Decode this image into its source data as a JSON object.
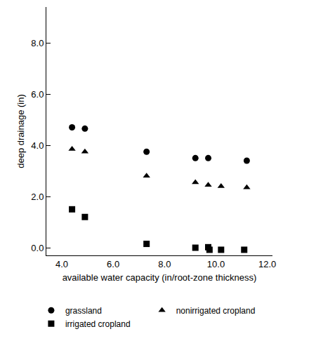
{
  "chart_data": {
    "type": "scatter",
    "x_label": "available water capacity (in/root-zone thickness)",
    "y_label": "deep drainage (in)",
    "xlim": [
      3.4,
      12.2
    ],
    "ylim": [
      -0.3,
      9.4
    ],
    "xticks": [
      {
        "value": 4,
        "label": "4.0"
      },
      {
        "value": 6,
        "label": "6.0"
      },
      {
        "value": 8,
        "label": "8.0"
      },
      {
        "value": 10,
        "label": "10.0"
      },
      {
        "value": 12,
        "label": "12.0"
      }
    ],
    "yticks": [
      {
        "value": 0,
        "label": "0.0"
      },
      {
        "value": 2,
        "label": "2.0"
      },
      {
        "value": 4,
        "label": "4.0"
      },
      {
        "value": 6,
        "label": "6.0"
      },
      {
        "value": 8,
        "label": "8.0"
      }
    ],
    "grid": false,
    "legend": "bottom",
    "series": [
      {
        "name": "grassland",
        "color": "#000000",
        "marker": "circle",
        "x": [
          4.4,
          4.9,
          7.3,
          9.2,
          9.7,
          11.2
        ],
        "values": [
          4.7,
          4.65,
          3.75,
          3.5,
          3.5,
          3.4
        ]
      },
      {
        "name": "nonirrigated cropland",
        "color": "#000000",
        "marker": "triangle-up",
        "x": [
          4.4,
          4.9,
          7.3,
          9.2,
          9.7,
          10.2,
          11.2
        ],
        "values": [
          3.85,
          3.75,
          2.8,
          2.55,
          2.45,
          2.4,
          2.35
        ]
      },
      {
        "name": "irrigated cropland",
        "color": "#000000",
        "marker": "square",
        "x": [
          4.4,
          4.9,
          7.3,
          9.2,
          9.7,
          9.75,
          10.2,
          11.1
        ],
        "values": [
          1.5,
          1.2,
          0.15,
          0.0,
          0.02,
          -0.08,
          -0.08,
          -0.08
        ]
      }
    ]
  }
}
